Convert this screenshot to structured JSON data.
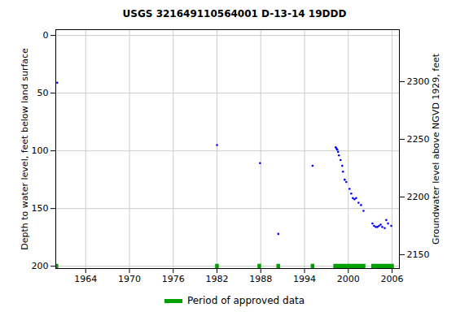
{
  "chart_data": {
    "type": "scatter",
    "title": "USGS 321649110564001 D-13-14 19DDD",
    "y_label": "Depth to water level, feet below land surface",
    "y2_label": "Groundwater level above NGVD 1929, feet",
    "x": [
      1960.1,
      1982.0,
      1987.9,
      1990.4,
      1995.1,
      1998.27,
      1998.38,
      1998.49,
      1998.6,
      1998.71,
      1998.94,
      1999.16,
      1999.27,
      1999.5,
      1999.72,
      2000.17,
      2000.4,
      2000.62,
      2000.84,
      2001.07,
      2001.4,
      2001.74,
      2002.08,
      2003.31,
      2003.53,
      2003.76,
      2003.98,
      2004.2,
      2004.43,
      2004.65,
      2004.99,
      2005.21,
      2005.44,
      2005.88
    ],
    "values": [
      41,
      95,
      110.6,
      172,
      113,
      97,
      98,
      99,
      101,
      104,
      108,
      113,
      118,
      125,
      127,
      133,
      137,
      141,
      142,
      141,
      145,
      147,
      152,
      163,
      165,
      166,
      166,
      165,
      164,
      166,
      167,
      160,
      163,
      165
    ],
    "color": "#0000ff",
    "marker": "dot",
    "approved_periods": {
      "name": "Period of approved data",
      "color": "#00a000",
      "ranges": [
        [
          1959.9,
          1960.3
        ],
        [
          1981.8,
          1982.3
        ],
        [
          1987.6,
          1988.1
        ],
        [
          1990.2,
          1990.7
        ],
        [
          1994.9,
          1995.4
        ],
        [
          1998.0,
          2002.4
        ],
        [
          2003.2,
          2006.3
        ]
      ]
    },
    "xlim": [
      1959.9,
      2007.0
    ],
    "xticks": [
      1964,
      1970,
      1976,
      1982,
      1988,
      1994,
      2000,
      2006
    ],
    "ylim": [
      -5,
      202
    ],
    "yticks": [
      0,
      50,
      100,
      150,
      200
    ],
    "y2lim": [
      2345,
      2138
    ],
    "y2ticks": [
      2150,
      2200,
      2250,
      2300
    ],
    "grid": true
  }
}
